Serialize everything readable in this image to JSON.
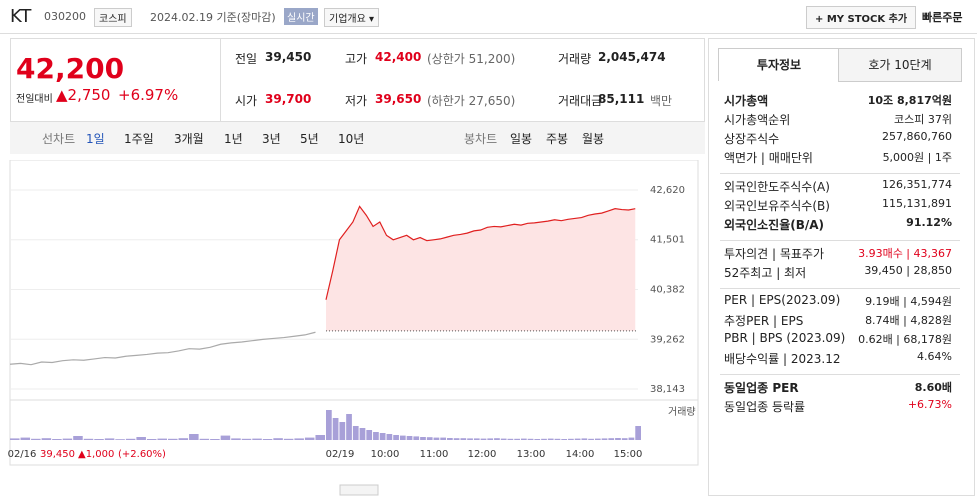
{
  "header": {
    "name": "KT",
    "code": "030200",
    "market": "코스피",
    "date": "2024.02.19 기준(장마감)",
    "realtime": "실시간",
    "overview": "기업개요 ▾",
    "mystock": "+ MY STOCK 추가",
    "quick": "빠른주문"
  },
  "quote": {
    "price": "42,200",
    "change_label": "전일대비",
    "change": "▲2,750",
    "change_pct": "+6.97%"
  },
  "stats": [
    {
      "label": "전일",
      "value": "39,450",
      "extra": ""
    },
    {
      "label": "고가",
      "value": "42,400",
      "extra": "(상한가 51,200)",
      "color": "#e0001b"
    },
    {
      "label": "거래량",
      "value": "2,045,474",
      "extra": ""
    },
    {
      "label": "시가",
      "value": "39,700",
      "extra": "",
      "color": "#e0001b"
    },
    {
      "label": "저가",
      "value": "39,650",
      "extra": "(하한가 27,650)",
      "color": "#e0001b"
    },
    {
      "label": "거래대금",
      "value": "85,111",
      "extra": "백만"
    }
  ],
  "periods": {
    "label": "선차트",
    "items": [
      "1일",
      "1주일",
      "3개월",
      "1년",
      "3년",
      "5년",
      "10년"
    ],
    "candle_label": "봉차트",
    "candles": [
      "일봉",
      "주봉",
      "월봉"
    ]
  },
  "chart_data": {
    "type": "line",
    "ylim": [
      38143,
      42620
    ],
    "yticks": [
      {
        "value": 38143,
        "label": "38,143"
      },
      {
        "value": 39262,
        "label": "39,262"
      },
      {
        "value": 40382,
        "label": "40,382"
      },
      {
        "value": 41501,
        "label": "41,501"
      },
      {
        "value": 42620,
        "label": "42,620"
      }
    ],
    "prev_close": 39450,
    "x_labels": [
      "02/16",
      "02/19",
      "10:00",
      "11:00",
      "12:00",
      "13:00",
      "14:00",
      "15:00"
    ],
    "footer": {
      "price": "39,450",
      "change": "▲1,000",
      "pct": "(+2.60%)"
    },
    "volume_label": "거래량",
    "vol_ylim": [
      0,
      200000
    ],
    "series": [
      {
        "color": "#aaaaaa",
        "values": [
          38700,
          38720,
          38690,
          38750,
          38740,
          38780,
          38800,
          38790,
          38820,
          38850,
          38840,
          38880,
          38900,
          38920,
          38950,
          38960,
          39000,
          39050,
          39040,
          39080,
          39150,
          39180,
          39200,
          39230,
          39260,
          39280,
          39300,
          39330,
          39360,
          39420
        ],
        "volumes": [
          8000,
          12000,
          6000,
          9000,
          5000,
          7000,
          20000,
          6000,
          5000,
          8000,
          4000,
          6000,
          15000,
          5000,
          7000,
          6000,
          9000,
          30000,
          6000,
          5000,
          22000,
          8000,
          6000,
          7000,
          5000,
          9000,
          6000,
          8000,
          12000,
          25000
        ]
      },
      {
        "color": "#e02020",
        "values": [
          40150,
          40800,
          41500,
          41700,
          41900,
          42250,
          42050,
          41800,
          41900,
          41600,
          41500,
          41550,
          41600,
          41500,
          41550,
          41480,
          41500,
          41520,
          41560,
          41600,
          41620,
          41650,
          41700,
          41720,
          41780,
          41800,
          41790,
          41820,
          41850,
          41830,
          41870,
          41880,
          41900,
          41920,
          41950,
          41930,
          41960,
          41980,
          42000,
          42050,
          42080,
          42100,
          42150,
          42200,
          42180,
          42170,
          42200
        ],
        "volumes": [
          150000,
          110000,
          90000,
          130000,
          70000,
          60000,
          50000,
          40000,
          35000,
          30000,
          25000,
          22000,
          20000,
          18000,
          15000,
          14000,
          12000,
          12000,
          10000,
          9000,
          9000,
          8000,
          8000,
          7000,
          8000,
          9000,
          7000,
          6000,
          6000,
          7000,
          6000,
          5000,
          6000,
          7000,
          6000,
          5000,
          6000,
          7000,
          8000,
          6000,
          7000,
          8000,
          9000,
          10000,
          9000,
          12000,
          70000
        ]
      }
    ]
  },
  "panel": {
    "tabs": [
      "투자정보",
      "호가 10단계"
    ],
    "groups": [
      [
        {
          "label": "시가총액",
          "value": "10조 8,817억원",
          "bold": true
        },
        {
          "label": "시가총액순위",
          "value": "코스피 37위"
        },
        {
          "label": "상장주식수",
          "value": "257,860,760"
        },
        {
          "label": "액면가 | 매매단위",
          "value": "5,000원 | 1주"
        }
      ],
      [
        {
          "label": "외국인한도주식수(A)",
          "value": "126,351,774"
        },
        {
          "label": "외국인보유주식수(B)",
          "value": "115,131,891"
        },
        {
          "label": "외국인소진율(B/A)",
          "value": "91.12%",
          "bold": true
        }
      ],
      [
        {
          "label": "투자의견 | 목표주가",
          "value": "3.93매수 | 43,367",
          "color": "#e0001b"
        },
        {
          "label": "52주최고 | 최저",
          "value": "39,450 | 28,850"
        }
      ],
      [
        {
          "label": "PER | EPS(2023.09)",
          "value": "9.19배 | 4,594원"
        },
        {
          "label": "추정PER | EPS",
          "value": "8.74배 | 4,828원"
        },
        {
          "label": "PBR | BPS (2023.09)",
          "value": "0.62배 | 68,178원"
        },
        {
          "label": "배당수익률 | 2023.12",
          "value": "4.64%"
        }
      ],
      [
        {
          "label": "동일업종 PER",
          "value": "8.60배",
          "bold": true
        },
        {
          "label": "동일업종 등락률",
          "value": "+6.73%",
          "color": "#e0001b"
        }
      ]
    ]
  }
}
